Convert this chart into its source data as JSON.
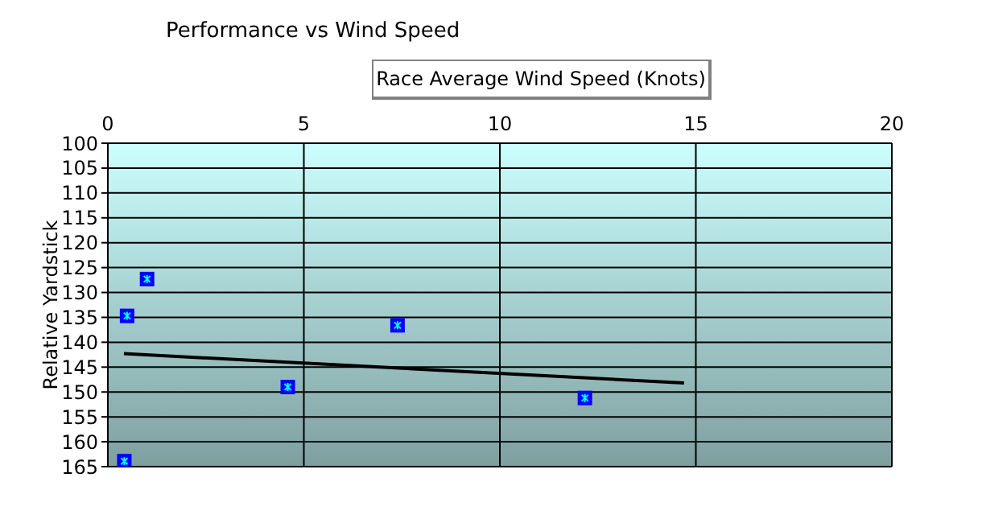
{
  "chart_data": {
    "type": "scatter",
    "title": "Performance vs Wind Speed",
    "xlabel": "Race Average Wind Speed (Knots)",
    "ylabel": "Relative Yardstick",
    "xlim": [
      0,
      20
    ],
    "xticks": [
      0,
      5,
      10,
      15,
      20
    ],
    "ylim": [
      165,
      100
    ],
    "yticks": [
      100,
      105,
      110,
      115,
      120,
      125,
      130,
      135,
      140,
      145,
      150,
      155,
      160,
      165
    ],
    "grid": true,
    "series": [
      {
        "marker": "square",
        "color": "#0000ff",
        "x": [
          0.49,
          1.0,
          0.42,
          4.59,
          7.39,
          12.17
        ],
        "values": [
          134.7,
          127.3,
          163.9,
          149.0,
          136.6,
          151.2
        ]
      },
      {
        "type": "line",
        "marker": "none",
        "color": "#000000",
        "x": [
          0.41,
          14.7
        ],
        "values": [
          142.3,
          148.2
        ]
      }
    ]
  }
}
